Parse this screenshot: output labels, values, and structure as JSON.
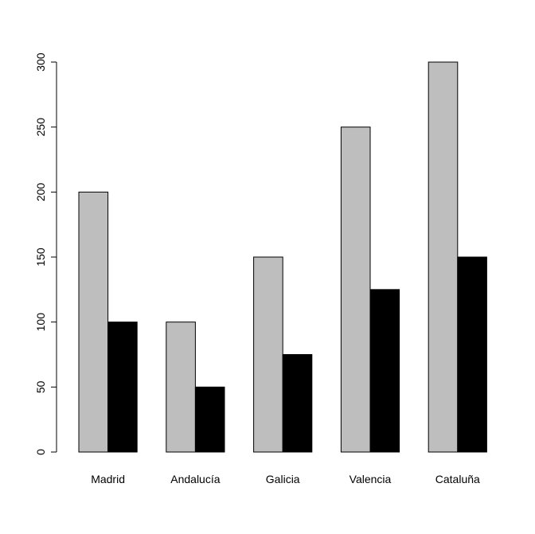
{
  "chart_data": {
    "type": "bar",
    "categories": [
      "Madrid",
      "Andalucía",
      "Galicia",
      "Valencia",
      "Cataluña"
    ],
    "series": [
      {
        "values": [
          200,
          100,
          150,
          250,
          300
        ],
        "color": "#bebebe"
      },
      {
        "values": [
          100,
          50,
          75,
          125,
          150
        ],
        "color": "#000000"
      }
    ],
    "title": "",
    "xlabel": "",
    "ylabel": "",
    "ylim": [
      0,
      300
    ],
    "yticks": [
      0,
      50,
      100,
      150,
      200,
      250,
      300
    ],
    "grid": false,
    "legend": "none"
  }
}
